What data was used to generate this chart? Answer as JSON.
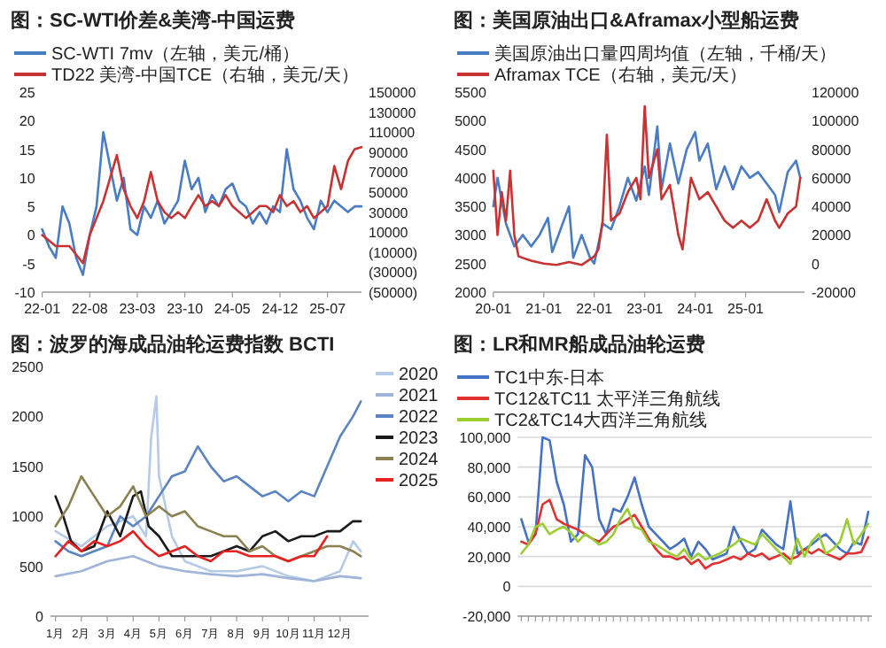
{
  "chart_data": [
    {
      "type": "line",
      "title": "图：SC-WTI价差&美湾-中国运费",
      "legend": "top",
      "xlim": [
        "2022-01",
        "2025-12"
      ],
      "xticks": [
        {
          "value": "2022-01",
          "label": "22-01"
        },
        {
          "value": "2022-08",
          "label": "22-08"
        },
        {
          "value": "2023-03",
          "label": "23-03"
        },
        {
          "value": "2023-10",
          "label": "23-10"
        },
        {
          "value": "2024-05",
          "label": "24-05"
        },
        {
          "value": "2024-12",
          "label": "24-12"
        },
        {
          "value": "2025-07",
          "label": "25-07"
        }
      ],
      "ylim": [
        -10,
        25
      ],
      "yticks": [
        -10,
        -5,
        0,
        5,
        10,
        15,
        20,
        25
      ],
      "y2lim": [
        -50000,
        150000
      ],
      "y2ticks": [
        150000,
        130000,
        110000,
        90000,
        70000,
        50000,
        30000,
        10000,
        {
          "value": -10000,
          "label": "(10000)"
        },
        {
          "value": -30000,
          "label": "(30000)"
        },
        {
          "value": -50000,
          "label": "(50000)"
        }
      ],
      "series": [
        {
          "name": "SC-WTI 7mv（左轴，美元/桶）",
          "color": "#4a7cc4",
          "x": [
            "2022-01",
            "2022-02",
            "2022-03",
            "2022-04",
            "2022-05",
            "2022-06",
            "2022-07",
            "2022-08",
            "2022-09",
            "2022-10",
            "2022-11",
            "2022-12",
            "2023-01",
            "2023-02",
            "2023-03",
            "2023-04",
            "2023-05",
            "2023-06",
            "2023-07",
            "2023-08",
            "2023-09",
            "2023-10",
            "2023-11",
            "2023-12",
            "2024-01",
            "2024-02",
            "2024-03",
            "2024-04",
            "2024-05",
            "2024-06",
            "2024-07",
            "2024-08",
            "2024-09",
            "2024-10",
            "2024-11",
            "2024-12",
            "2025-01",
            "2025-02",
            "2025-03",
            "2025-04",
            "2025-05",
            "2025-06",
            "2025-07",
            "2025-08",
            "2025-09",
            "2025-10",
            "2025-11",
            "2025-12"
          ],
          "values": [
            1,
            -2,
            -4,
            5,
            2,
            -4,
            -7,
            0,
            5,
            18,
            12,
            6,
            10,
            1,
            0,
            5,
            3,
            6,
            2,
            4,
            6,
            13,
            8,
            10,
            4,
            7,
            5,
            8,
            9,
            6,
            5,
            2,
            4,
            2,
            5,
            4,
            15,
            8,
            6,
            3,
            1,
            6,
            4,
            6,
            5,
            4,
            5,
            5
          ]
        },
        {
          "name": "TD22 美湾-中国TCE（右轴，美元/天）",
          "color": "#c83232",
          "axis": "y2",
          "x": [
            "2022-01",
            "2022-03",
            "2022-05",
            "2022-07",
            "2022-08",
            "2022-09",
            "2022-10",
            "2022-11",
            "2022-12",
            "2023-01",
            "2023-02",
            "2023-03",
            "2023-04",
            "2023-05",
            "2023-06",
            "2023-07",
            "2023-08",
            "2023-09",
            "2023-10",
            "2023-11",
            "2023-12",
            "2024-01",
            "2024-02",
            "2024-03",
            "2024-04",
            "2024-05",
            "2024-06",
            "2024-07",
            "2024-08",
            "2024-09",
            "2024-10",
            "2024-11",
            "2024-12",
            "2025-01",
            "2025-02",
            "2025-03",
            "2025-04",
            "2025-05",
            "2025-06",
            "2025-07",
            "2025-08",
            "2025-09",
            "2025-10",
            "2025-11",
            "2025-12"
          ],
          "values": [
            7000,
            -4000,
            -4000,
            -21000,
            7000,
            24000,
            41000,
            64000,
            87000,
            53000,
            36000,
            24000,
            41000,
            70000,
            41000,
            30000,
            24000,
            30000,
            24000,
            36000,
            47000,
            36000,
            41000,
            36000,
            47000,
            36000,
            30000,
            24000,
            30000,
            36000,
            36000,
            30000,
            47000,
            36000,
            41000,
            30000,
            36000,
            24000,
            30000,
            36000,
            76000,
            53000,
            81000,
            93000,
            95000
          ]
        }
      ]
    },
    {
      "type": "line",
      "title": "图：美国原油出口&Aframax小型船运费",
      "legend": "top",
      "xlim": [
        "2020-01",
        "2026-03"
      ],
      "xticks": [
        {
          "value": "2020-01",
          "label": "20-01"
        },
        {
          "value": "2021-01",
          "label": "21-01"
        },
        {
          "value": "2022-01",
          "label": "22-01"
        },
        {
          "value": "2023-01",
          "label": "23-01"
        },
        {
          "value": "2024-01",
          "label": "24-01"
        },
        {
          "value": "2025-01",
          "label": "25-01"
        }
      ],
      "ylim": [
        2000,
        5500
      ],
      "yticks": [
        2000,
        2500,
        3000,
        3500,
        4000,
        4500,
        5000,
        5500
      ],
      "y2lim": [
        -20000,
        120000
      ],
      "y2ticks": [
        -20000,
        0,
        20000,
        40000,
        60000,
        80000,
        100000,
        120000
      ],
      "series": [
        {
          "name": "美国原油出口量四周均值（左轴，千桶/天）",
          "color": "#4a7cc4",
          "x": [
            "2020-01",
            "2020-02",
            "2020-04",
            "2020-06",
            "2020-08",
            "2020-10",
            "2020-12",
            "2021-02",
            "2021-03",
            "2021-05",
            "2021-07",
            "2021-08",
            "2021-10",
            "2021-12",
            "2022-01",
            "2022-03",
            "2022-05",
            "2022-07",
            "2022-09",
            "2022-11",
            "2023-01",
            "2023-02",
            "2023-04",
            "2023-05",
            "2023-07",
            "2023-09",
            "2023-11",
            "2024-01",
            "2024-02",
            "2024-04",
            "2024-06",
            "2024-08",
            "2024-10",
            "2024-12",
            "2025-02",
            "2025-04",
            "2025-06",
            "2025-08",
            "2025-09",
            "2025-11",
            "2026-01",
            "2026-02"
          ],
          "values": [
            3500,
            4000,
            3200,
            2800,
            3000,
            2800,
            3000,
            3300,
            2700,
            3100,
            3500,
            2600,
            3000,
            2600,
            2500,
            3200,
            3100,
            3500,
            4000,
            3600,
            4200,
            3700,
            4900,
            3800,
            4600,
            3900,
            4500,
            4800,
            4300,
            4600,
            3800,
            4200,
            3800,
            4200,
            4000,
            4100,
            3900,
            3700,
            3400,
            4100,
            4300,
            4000
          ]
        },
        {
          "name": "Aframax TCE（右轴，美元/天）",
          "color": "#c83232",
          "axis": "y2",
          "x": [
            "2020-01",
            "2020-02",
            "2020-03",
            "2020-04",
            "2020-05",
            "2020-06",
            "2020-07",
            "2020-10",
            "2021-01",
            "2021-04",
            "2021-07",
            "2021-10",
            "2022-01",
            "2022-02",
            "2022-03",
            "2022-04",
            "2022-05",
            "2022-07",
            "2022-09",
            "2022-11",
            "2022-12",
            "2023-01",
            "2023-02",
            "2023-04",
            "2023-05",
            "2023-07",
            "2023-09",
            "2023-10",
            "2023-12",
            "2024-02",
            "2024-04",
            "2024-06",
            "2024-08",
            "2024-10",
            "2024-12",
            "2025-02",
            "2025-04",
            "2025-06",
            "2025-08",
            "2025-09",
            "2025-11",
            "2026-01",
            "2026-02"
          ],
          "values": [
            65000,
            20000,
            50000,
            30000,
            65000,
            20000,
            5000,
            2000,
            0,
            -1000,
            1000,
            -1000,
            5000,
            10000,
            30000,
            90000,
            30000,
            35000,
            50000,
            60000,
            45000,
            110000,
            60000,
            80000,
            45000,
            55000,
            20000,
            10000,
            60000,
            45000,
            50000,
            40000,
            30000,
            25000,
            30000,
            25000,
            30000,
            45000,
            30000,
            25000,
            35000,
            40000,
            60000
          ]
        }
      ]
    },
    {
      "type": "line",
      "title": "图：波罗的海成品油轮运费指数 BCTI",
      "legend": "top right",
      "xlim": [
        0.8,
        13.1
      ],
      "xticks": [
        {
          "value": 1,
          "label": "1月"
        },
        {
          "value": 2,
          "label": "2月"
        },
        {
          "value": 3,
          "label": "3月"
        },
        {
          "value": 4,
          "label": "4月"
        },
        {
          "value": 5,
          "label": "5月"
        },
        {
          "value": 6,
          "label": "6月"
        },
        {
          "value": 7,
          "label": "7月"
        },
        {
          "value": 8,
          "label": "8月"
        },
        {
          "value": 9,
          "label": "9月"
        },
        {
          "value": 10,
          "label": "10月"
        },
        {
          "value": 11,
          "label": "11月"
        },
        {
          "value": 12,
          "label": "12月"
        }
      ],
      "ylim": [
        0,
        2500
      ],
      "yticks": [
        0,
        500,
        1000,
        1500,
        2000,
        2500
      ],
      "series": [
        {
          "name": "2020",
          "color": "#b4cae6",
          "x": [
            1,
            2,
            3,
            4,
            4.5,
            4.7,
            4.9,
            5,
            5.5,
            6,
            7,
            8,
            9,
            10,
            11,
            12,
            12.5,
            12.8
          ],
          "values": [
            850,
            700,
            900,
            1000,
            800,
            1800,
            2200,
            1400,
            800,
            550,
            450,
            450,
            500,
            400,
            350,
            450,
            750,
            650
          ]
        },
        {
          "name": "2021",
          "color": "#9fb4d8",
          "x": [
            1,
            2,
            3,
            4,
            5,
            6,
            7,
            8,
            9,
            10,
            11,
            12,
            12.8
          ],
          "values": [
            400,
            450,
            550,
            600,
            500,
            450,
            420,
            400,
            420,
            380,
            350,
            400,
            380
          ]
        },
        {
          "name": "2022",
          "color": "#5b84c4",
          "x": [
            1,
            1.5,
            2,
            3,
            3.5,
            4,
            4.5,
            5,
            5.5,
            6,
            6.5,
            7,
            7.5,
            8,
            8.5,
            9,
            9.5,
            10,
            10.5,
            11,
            11.5,
            12,
            12.5,
            12.8
          ],
          "values": [
            750,
            650,
            600,
            700,
            1000,
            900,
            1000,
            1200,
            1400,
            1450,
            1700,
            1500,
            1350,
            1400,
            1300,
            1200,
            1250,
            1150,
            1250,
            1200,
            1500,
            1800,
            2000,
            2150
          ]
        },
        {
          "name": "2023",
          "color": "#1a1a1a",
          "x": [
            1,
            1.3,
            1.6,
            2,
            2.5,
            3,
            3.5,
            4,
            4.3,
            4.6,
            5,
            5.5,
            6,
            7,
            7.5,
            8,
            8.5,
            9,
            9.5,
            10,
            10.5,
            11,
            11.5,
            12,
            12.5,
            12.8
          ],
          "values": [
            1200,
            1000,
            750,
            650,
            700,
            1050,
            800,
            1200,
            1250,
            900,
            800,
            600,
            600,
            600,
            650,
            700,
            650,
            800,
            850,
            750,
            800,
            800,
            850,
            850,
            950,
            950
          ]
        },
        {
          "name": "2024",
          "color": "#8b8050",
          "x": [
            1,
            1.5,
            2,
            2.5,
            3,
            3.5,
            4,
            4.5,
            5,
            5.5,
            6,
            6.5,
            7,
            7.5,
            8,
            8.5,
            9,
            9.5,
            10,
            10.5,
            11,
            11.5,
            12,
            12.5,
            12.8
          ],
          "values": [
            900,
            1100,
            1400,
            1200,
            1000,
            1100,
            1300,
            1000,
            1100,
            1000,
            1050,
            900,
            850,
            800,
            800,
            650,
            700,
            600,
            550,
            600,
            650,
            700,
            700,
            650,
            600
          ]
        },
        {
          "name": "2025",
          "color": "#e82020",
          "x": [
            1,
            1.5,
            2,
            2.5,
            3,
            3.5,
            4,
            4.5,
            5,
            5.5,
            6,
            6.5,
            7,
            7.5,
            8,
            8.5,
            9,
            9.5,
            10,
            10.5,
            11,
            11.5
          ],
          "values": [
            600,
            750,
            650,
            750,
            700,
            750,
            850,
            700,
            600,
            650,
            700,
            600,
            550,
            650,
            650,
            600,
            600,
            600,
            550,
            600,
            600,
            800
          ]
        }
      ]
    },
    {
      "type": "line",
      "title": "图：LR和MR船成品油轮运费",
      "legend": "top",
      "grid": "y",
      "categories": [
        null,
        null,
        null,
        null,
        null,
        null,
        null,
        null,
        null,
        null,
        null,
        null,
        null,
        null,
        null,
        null,
        null,
        null,
        null,
        null,
        null,
        null,
        null,
        null,
        null,
        null,
        null,
        null,
        null,
        null,
        null,
        null,
        null,
        null,
        null,
        null,
        null,
        null,
        null,
        null,
        null,
        null,
        null,
        null,
        null,
        null,
        null,
        null,
        null,
        null
      ],
      "ylim": [
        -20000,
        100000
      ],
      "yticks": [
        {
          "value": -20000,
          "label": "-20,000"
        },
        {
          "value": 0,
          "label": "0"
        },
        {
          "value": 20000,
          "label": "20,000"
        },
        {
          "value": 40000,
          "label": "40,000"
        },
        {
          "value": 60000,
          "label": "60,000"
        },
        {
          "value": 80000,
          "label": "80,000"
        },
        {
          "value": 100000,
          "label": "100,000"
        }
      ],
      "series": [
        {
          "name": "TC1中东-日本",
          "color": "#4472c4",
          "values": [
            45000,
            30000,
            35000,
            100000,
            98000,
            70000,
            55000,
            30000,
            35000,
            88000,
            80000,
            45000,
            35000,
            52000,
            50000,
            60000,
            73000,
            55000,
            40000,
            35000,
            30000,
            25000,
            28000,
            32000,
            20000,
            30000,
            25000,
            18000,
            20000,
            22000,
            40000,
            30000,
            22000,
            25000,
            38000,
            33000,
            28000,
            25000,
            57000,
            22000,
            25000,
            28000,
            32000,
            35000,
            30000,
            25000,
            22000,
            30000,
            28000,
            50000
          ]
        },
        {
          "name": "TC12&TC11 太平洋三角航线",
          "color": "#e03030",
          "values": [
            30000,
            28000,
            35000,
            55000,
            58000,
            45000,
            42000,
            40000,
            38000,
            35000,
            32000,
            30000,
            35000,
            40000,
            42000,
            45000,
            48000,
            40000,
            32000,
            25000,
            20000,
            20000,
            18000,
            20000,
            15000,
            18000,
            12000,
            15000,
            16000,
            18000,
            20000,
            18000,
            22000,
            20000,
            22000,
            18000,
            20000,
            22000,
            18000,
            20000,
            25000,
            22000,
            25000,
            22000,
            20000,
            18000,
            22000,
            22000,
            23000,
            33000
          ]
        },
        {
          "name": "TC2&TC14大西洋三角航线",
          "color": "#9acd32",
          "values": [
            22000,
            28000,
            40000,
            42000,
            35000,
            38000,
            40000,
            36000,
            30000,
            35000,
            32000,
            28000,
            30000,
            35000,
            45000,
            52000,
            40000,
            38000,
            30000,
            28000,
            25000,
            22000,
            20000,
            25000,
            18000,
            22000,
            18000,
            20000,
            22000,
            25000,
            28000,
            32000,
            30000,
            28000,
            35000,
            30000,
            25000,
            20000,
            15000,
            32000,
            20000,
            30000,
            35000,
            22000,
            25000,
            30000,
            45000,
            28000,
            35000,
            42000
          ]
        }
      ]
    }
  ]
}
